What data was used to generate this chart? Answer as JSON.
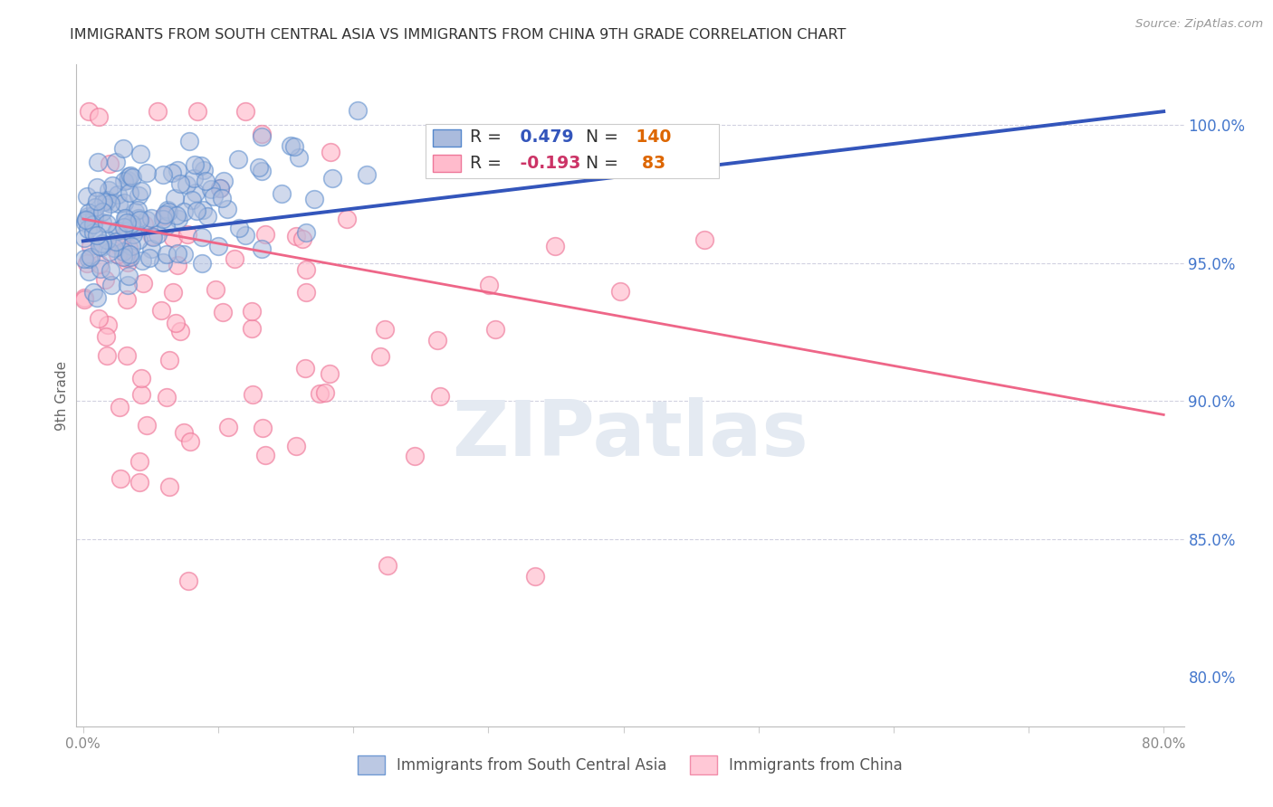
{
  "title": "IMMIGRANTS FROM SOUTH CENTRAL ASIA VS IMMIGRANTS FROM CHINA 9TH GRADE CORRELATION CHART",
  "source": "Source: ZipAtlas.com",
  "ylabel": "9th Grade",
  "blue_R": 0.479,
  "blue_N": 140,
  "pink_R": -0.193,
  "pink_N": 83,
  "blue_dot_color": "#AABBDD",
  "blue_edge_color": "#5588CC",
  "pink_dot_color": "#FFBBCC",
  "pink_edge_color": "#EE7799",
  "blue_line_color": "#3355BB",
  "pink_line_color": "#EE6688",
  "legend_blue_label": "Immigrants from South Central Asia",
  "legend_pink_label": "Immigrants from China",
  "watermark_text": "ZIPatlas",
  "watermark_color": "#E4EAF2",
  "background_color": "#FFFFFF",
  "title_color": "#333333",
  "axis_label_color": "#666666",
  "right_tick_color": "#4477CC",
  "legend_R_black": "#333333",
  "legend_R_blue": "#3355BB",
  "legend_R_pink": "#CC3366",
  "legend_N_black": "#333333",
  "legend_N_orange": "#DD6600",
  "xlim_min": -0.005,
  "xlim_max": 0.815,
  "ylim_min": 0.782,
  "ylim_max": 1.022,
  "blue_line_x0": 0.0,
  "blue_line_y0": 0.958,
  "blue_line_x1": 0.8,
  "blue_line_y1": 1.005,
  "pink_line_x0": 0.0,
  "pink_line_y0": 0.966,
  "pink_line_x1": 0.8,
  "pink_line_y1": 0.895
}
